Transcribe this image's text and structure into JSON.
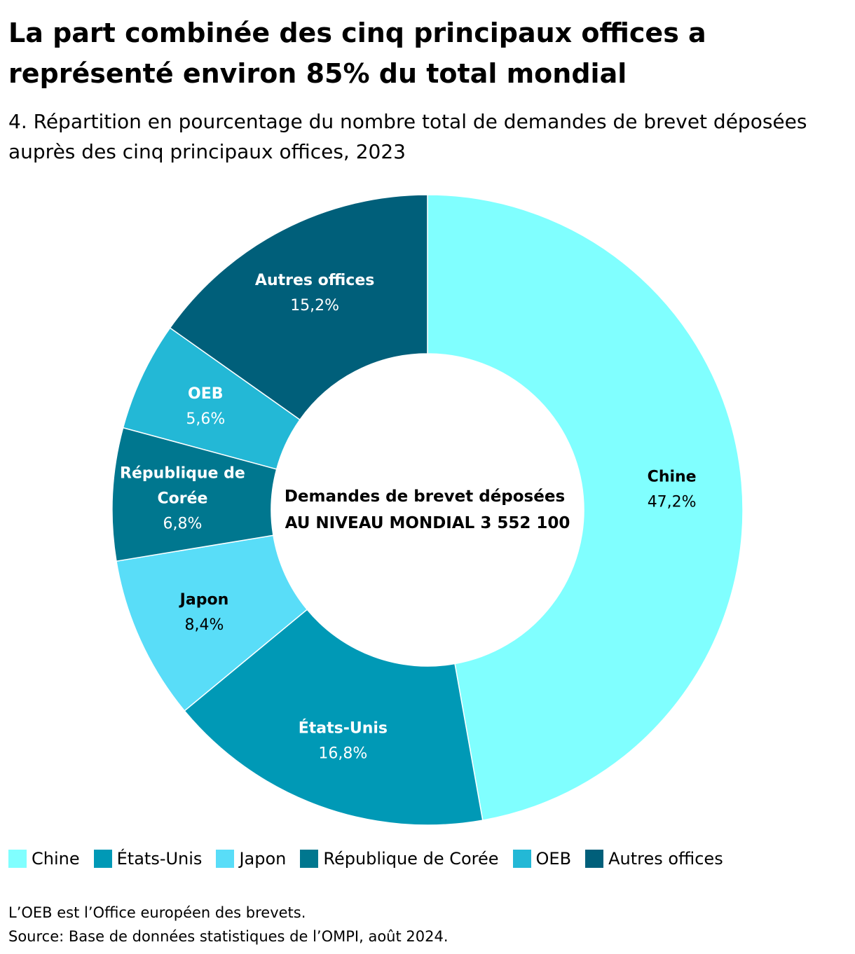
{
  "title": "La part combinée des cinq principaux offices a représenté environ 85% du total mondial",
  "subtitle": "4. Répartition en pourcentage du nombre total de demandes de brevet déposées auprès des cinq principaux offices, 2023",
  "chart_data": {
    "type": "pie",
    "donut": true,
    "center_label": [
      "Demandes de brevet déposées",
      "AU NIVEAU MONDIAL 3 552 100"
    ],
    "categories": [
      "Chine",
      "États-Unis",
      "Japon",
      "République de Corée",
      "OEB",
      "Autres offices"
    ],
    "slice_labels": [
      [
        "Chine"
      ],
      [
        "États-Unis"
      ],
      [
        "Japon"
      ],
      [
        "République de",
        "Corée"
      ],
      [
        "OEB"
      ],
      [
        "Autres offices"
      ]
    ],
    "values": [
      47.2,
      16.8,
      8.4,
      6.8,
      5.6,
      15.2
    ],
    "value_labels": [
      "47,2%",
      "16,8%",
      "8,4%",
      "6,8%",
      "5,6%",
      "15,2%"
    ],
    "colors": [
      "#80FFFF",
      "#0099B6",
      "#59DDF8",
      "#00778F",
      "#23B8D6",
      "#005F7A"
    ],
    "label_colors": [
      "#000000",
      "#ffffff",
      "#000000",
      "#ffffff",
      "#ffffff",
      "#ffffff"
    ],
    "start": "top",
    "direction": "clockwise",
    "legend_position": "bottom"
  },
  "legend": [
    "Chine",
    "États-Unis",
    "Japon",
    "République de Corée",
    "OEB",
    "Autres offices"
  ],
  "note": "L’OEB est l’Office européen des brevets.",
  "source": "Source: Base de données statistiques de l’OMPI, août 2024."
}
